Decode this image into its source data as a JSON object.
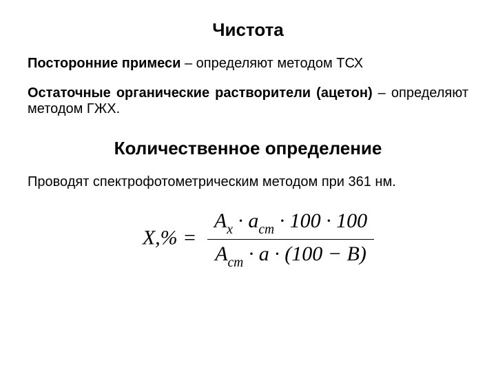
{
  "section1": {
    "title": "Чистота",
    "para1_bold": "Посторонние примеси",
    "para1_rest": " – определяют методом ТСХ",
    "para2_bold": "Остаточные органические растворители (ацетон)",
    "para2_rest": " – определяют методом ГЖХ."
  },
  "section2": {
    "title": "Количественное определение",
    "para": "Проводят спектрофотометрическим методом при 361 нм."
  },
  "formula": {
    "lhs": "X,% =",
    "num_A": "A",
    "num_A_sub": "x",
    "num_dot1": " · ",
    "num_a": "a",
    "num_a_sub": "ст",
    "num_dot2": " · ",
    "num_100a": "100",
    "num_dot3": " · ",
    "num_100b": "100",
    "den_A": "A",
    "den_A_sub": "ст",
    "den_dot1": " · ",
    "den_a": "a",
    "den_dot2": " · ",
    "den_paren": "(100 − B)"
  }
}
